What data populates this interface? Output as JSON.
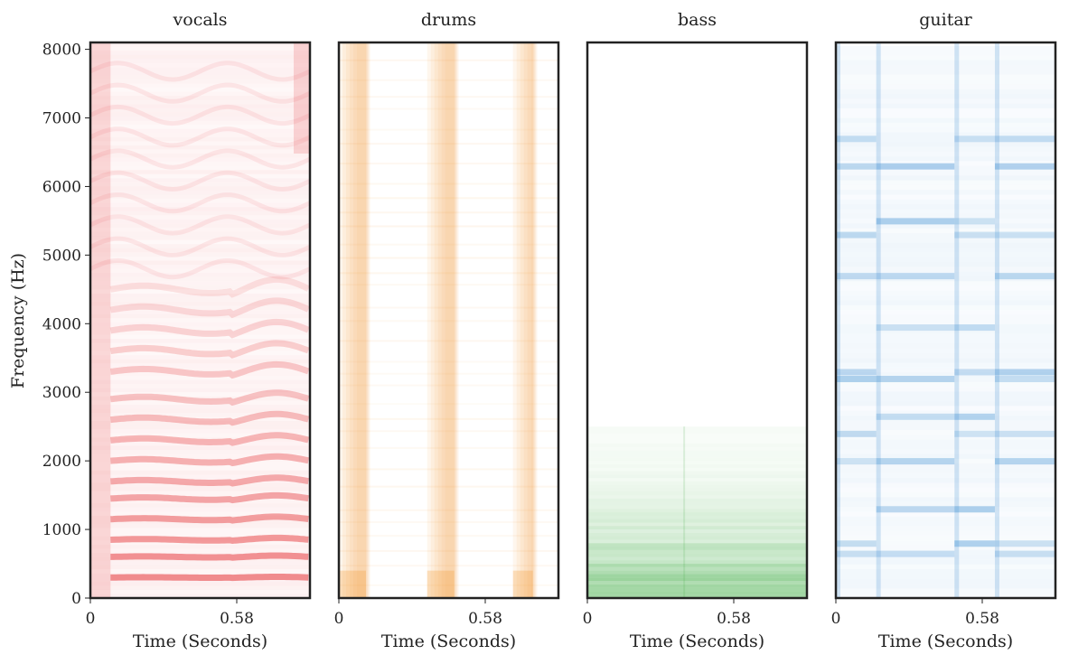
{
  "chart_data": {
    "type": "heatmap",
    "ylabel": "Frequency (Hz)",
    "xlabel": "Time (Seconds)",
    "xlim": [
      0,
      0.87
    ],
    "ylim": [
      0,
      8100
    ],
    "yticks": [
      "0",
      "1000",
      "2000",
      "3000",
      "4000",
      "5000",
      "6000",
      "7000",
      "8000"
    ],
    "ytick_values": [
      0,
      1000,
      2000,
      3000,
      4000,
      5000,
      6000,
      7000,
      8000
    ],
    "xticks": [
      "0",
      "0.58"
    ],
    "xtick_values": [
      0,
      0.58
    ],
    "grid": false,
    "panels": [
      {
        "title": "vocals",
        "color": "#e8474a",
        "description_harmonics_hz": [
          300,
          600,
          850,
          1150,
          1450,
          1700,
          2000,
          2300,
          2600,
          2900,
          3300,
          3600,
          3900,
          4200,
          4500
        ],
        "onset_s": 0.08,
        "end_s": 0.87
      },
      {
        "title": "drums",
        "color": "#f28e1c",
        "onsets_s": [
          0.0,
          0.35,
          0.69
        ]
      },
      {
        "title": "bass",
        "color": "#3aaa3f",
        "max_freq_hz": 2500
      },
      {
        "title": "guitar",
        "color": "#3f8fd2",
        "onsets_s": [
          0.0,
          0.16,
          0.47,
          0.63
        ],
        "harmonics_hz": [
          650,
          800,
          1300,
          2000,
          2400,
          2650,
          3200,
          3300,
          3950,
          4700,
          5300,
          5500,
          6300,
          6700
        ]
      }
    ]
  }
}
